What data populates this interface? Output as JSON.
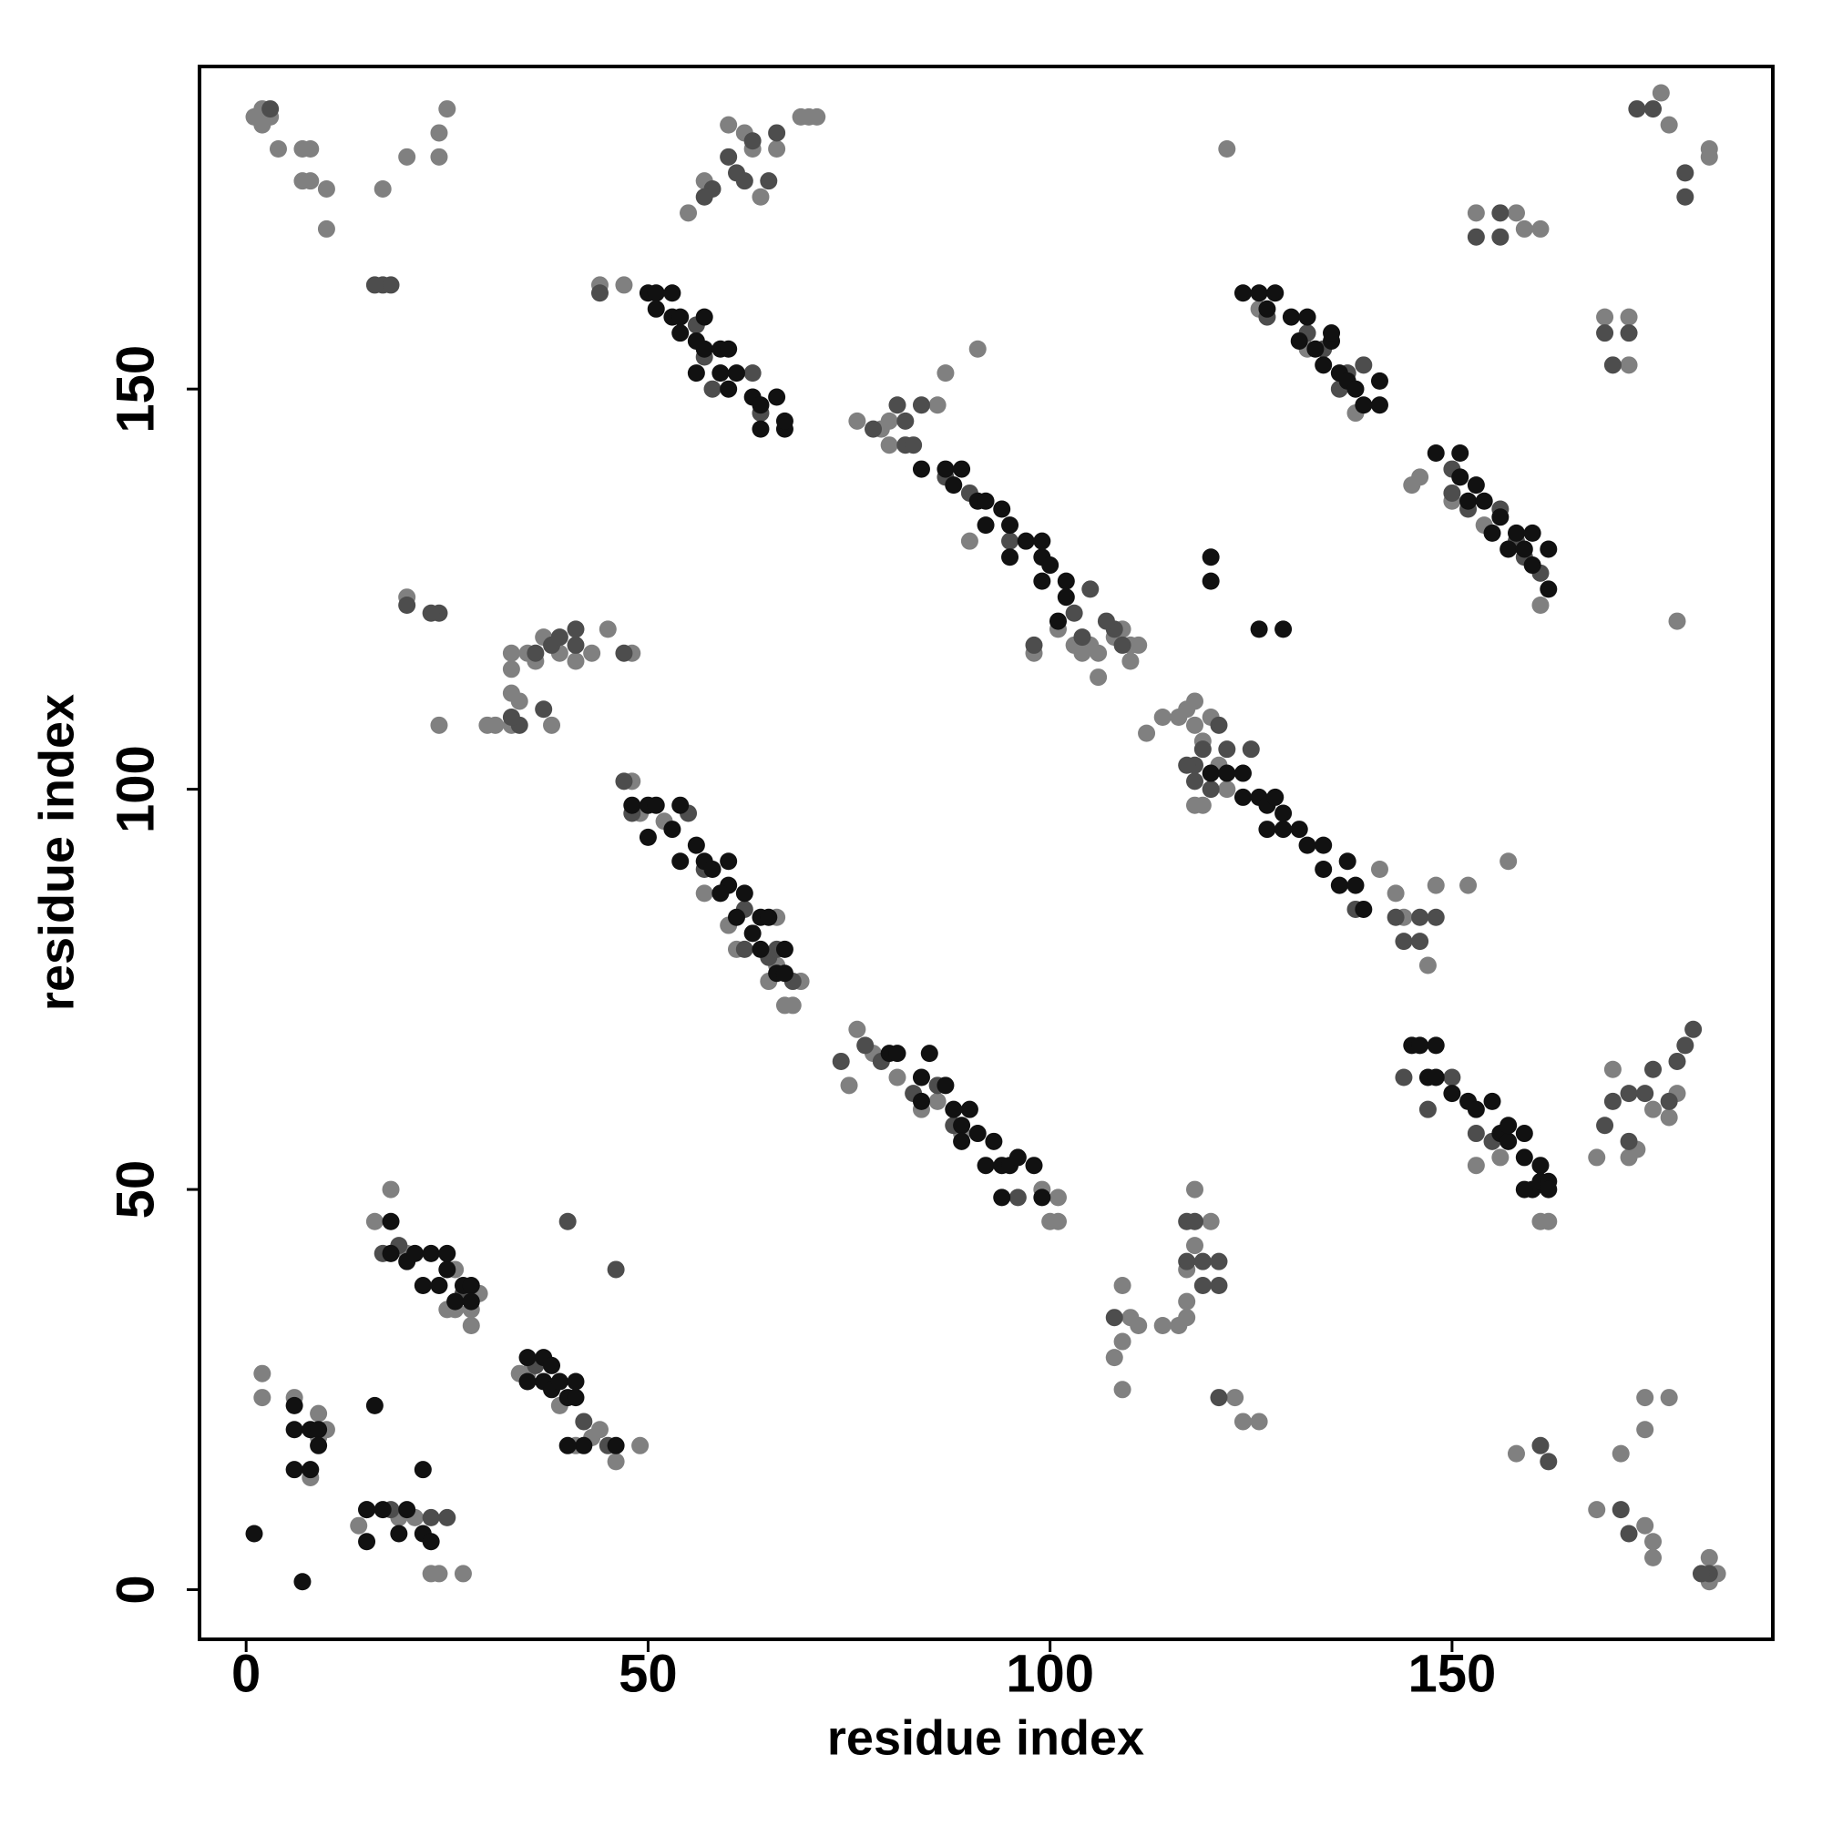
{
  "chart_data": {
    "type": "scatter",
    "x_label": "residue index",
    "y_label": "residue index",
    "xlim": [
      -5.8,
      189.9
    ],
    "ylim": [
      -6.2,
      190.3
    ],
    "xticks": [
      0,
      50,
      100,
      150
    ],
    "yticks": [
      0,
      50,
      100,
      150
    ],
    "grid": false,
    "series": [
      {
        "color": "#808080",
        "x": [
          1,
          2,
          3,
          4,
          7,
          8,
          7,
          10,
          10,
          17,
          20,
          24,
          24,
          55,
          57,
          60,
          62,
          63,
          64,
          66,
          69,
          70,
          71,
          44,
          20,
          24,
          30,
          31,
          33,
          33,
          33,
          33,
          34,
          35,
          36,
          37,
          39,
          41,
          43,
          45,
          48,
          38,
          47,
          76,
          80,
          79,
          86,
          87,
          91,
          80,
          90,
          98,
          101,
          103,
          104,
          105,
          106,
          106,
          108,
          109,
          110,
          110,
          111,
          112,
          114,
          117,
          118,
          118,
          119,
          120,
          121,
          116,
          118,
          119,
          122,
          141,
          143,
          144,
          147,
          148,
          152,
          157,
          153,
          156,
          162,
          161,
          168,
          170,
          175,
          177,
          178,
          173,
          169,
          172,
          172,
          161,
          178,
          159,
          161,
          153,
          158,
          177,
          176,
          182,
          182,
          122,
          145,
          146,
          150,
          154,
          132,
          138,
          126,
          109,
          108,
          109,
          110,
          111,
          114,
          116,
          117,
          117,
          117,
          118,
          118,
          120,
          109,
          123,
          124,
          126,
          100,
          101,
          101,
          99,
          76,
          75,
          78,
          81,
          67,
          68,
          65,
          69,
          66,
          48,
          49,
          57,
          60,
          61,
          52,
          84,
          86,
          89,
          2,
          2,
          6,
          9,
          8,
          9,
          10,
          14,
          15,
          19,
          21,
          23,
          24,
          27,
          26,
          25,
          28,
          29,
          16,
          18,
          34,
          39,
          41,
          43,
          46,
          49,
          168,
          171,
          174,
          174,
          177,
          175,
          175,
          182,
          183,
          182,
          174,
          158,
          66,
          172,
          35,
          25,
          8,
          2,
          20,
          26,
          28,
          44
        ],
        "values": [
          184,
          185,
          184,
          180,
          180,
          180,
          176,
          175,
          170,
          175,
          179,
          179,
          182,
          172,
          176,
          183,
          182,
          180,
          174,
          180,
          184,
          184,
          184,
          163,
          124,
          108,
          108,
          108,
          108,
          112,
          115,
          117,
          111,
          117,
          116,
          119,
          117,
          116,
          117,
          120,
          117,
          108,
          163,
          146,
          146,
          145,
          148,
          152,
          155,
          143,
          131,
          117,
          120,
          118,
          117,
          118,
          117,
          114,
          119,
          120,
          116,
          118,
          118,
          107,
          109,
          110,
          108,
          111,
          106,
          109,
          103,
          109,
          98,
          98,
          100,
          90,
          87,
          84,
          78,
          88,
          88,
          91,
          53,
          54,
          46,
          46,
          54,
          65,
          60,
          59,
          62,
          55,
          159,
          159,
          153,
          123,
          121,
          170,
          170,
          172,
          172,
          183,
          187,
          180,
          179,
          180,
          138,
          139,
          136,
          133,
          155,
          147,
          160,
          38,
          29,
          31,
          34,
          33,
          33,
          33,
          34,
          36,
          40,
          43,
          50,
          46,
          25,
          24,
          21,
          21,
          46,
          46,
          49,
          50,
          70,
          63,
          67,
          64,
          73,
          73,
          76,
          76,
          78,
          101,
          97,
          87,
          83,
          80,
          96,
          60,
          61,
          57,
          24,
          27,
          24,
          22,
          14,
          19,
          20,
          8,
          10,
          9,
          9,
          2,
          2,
          2,
          35,
          35,
          35,
          37,
          46,
          50,
          27,
          23,
          18,
          19,
          16,
          18,
          10,
          17,
          20,
          24,
          24,
          6,
          4,
          4,
          2,
          1,
          8,
          17,
          84,
          54,
          27,
          185,
          176,
          183,
          42,
          40,
          33,
          20
        ]
      },
      {
        "color": "#4d4d4d",
        "x": [
          61,
          62,
          63,
          65,
          66,
          60,
          58,
          57,
          3,
          17,
          18,
          16,
          20,
          24,
          37,
          34,
          33,
          38,
          39,
          41,
          41,
          36,
          98,
          104,
          108,
          109,
          103,
          121,
          119,
          118,
          120,
          122,
          125,
          118,
          117,
          146,
          144,
          148,
          146,
          138,
          143,
          170,
          169,
          172,
          174,
          175,
          177,
          178,
          179,
          180,
          172,
          161,
          162,
          182,
          181,
          171,
          172,
          173,
          175,
          179,
          179,
          153,
          156,
          156,
          169,
          172,
          170,
          117,
          119,
          121,
          119,
          121,
          108,
          117,
          118,
          121,
          47,
          40,
          46,
          45,
          44,
          78,
          82,
          81,
          82,
          84,
          83,
          87,
          90,
          95,
          107,
          105,
          25,
          27,
          17,
          19,
          42,
          36,
          23,
          18,
          74,
          77,
          79,
          83,
          86,
          88,
          96,
          47,
          48,
          55,
          57,
          62,
          65,
          66,
          68,
          62,
          134,
          137,
          136,
          139,
          132,
          127,
          150,
          150,
          156,
          152,
          158,
          159,
          161,
          144,
          150,
          153,
          155,
          147,
          58,
          64,
          63,
          57,
          56,
          23
        ],
        "values": [
          177,
          176,
          181,
          176,
          182,
          179,
          175,
          174,
          185,
          163,
          163,
          163,
          123,
          122,
          110,
          108,
          109,
          118,
          119,
          120,
          118,
          117,
          118,
          119,
          120,
          118,
          122,
          108,
          105,
          103,
          100,
          105,
          105,
          101,
          103,
          84,
          81,
          84,
          81,
          85,
          84,
          61,
          58,
          62,
          62,
          65,
          61,
          66,
          68,
          70,
          56,
          18,
          16,
          2,
          2,
          10,
          7,
          185,
          185,
          177,
          174,
          169,
          169,
          172,
          157,
          157,
          153,
          41,
          41,
          41,
          38,
          38,
          34,
          46,
          46,
          24,
          117,
          46,
          40,
          18,
          162,
          145,
          146,
          148,
          143,
          148,
          143,
          139,
          137,
          131,
          121,
          125,
          9,
          37,
          42,
          43,
          21,
          28,
          9,
          10,
          66,
          68,
          66,
          62,
          63,
          58,
          49,
          101,
          97,
          97,
          90,
          85,
          79,
          80,
          76,
          80,
          155,
          152,
          150,
          153,
          157,
          159,
          140,
          137,
          135,
          135,
          131,
          129,
          127,
          64,
          64,
          57,
          56,
          60,
          150,
          147,
          152,
          154,
          158,
          122
        ]
      },
      {
        "color": "#111111",
        "x": [
          50,
          51,
          53,
          51,
          53,
          54,
          57,
          54,
          56,
          57,
          59,
          60,
          56,
          59,
          61,
          60,
          63,
          64,
          66,
          64,
          67,
          67,
          84,
          87,
          88,
          89,
          91,
          92,
          94,
          92,
          95,
          97,
          95,
          99,
          99,
          100,
          99,
          102,
          102,
          101,
          124,
          126,
          128,
          127,
          130,
          132,
          131,
          133,
          135,
          134,
          136,
          137,
          138,
          139,
          141,
          141,
          135,
          148,
          151,
          151,
          153,
          152,
          154,
          156,
          155,
          158,
          157,
          159,
          160,
          162,
          162,
          160,
          48,
          50,
          51,
          54,
          53,
          56,
          57,
          58,
          60,
          60,
          59,
          62,
          61,
          64,
          63,
          65,
          64,
          67,
          66,
          67,
          50,
          54,
          80,
          81,
          84,
          85,
          84,
          87,
          88,
          89,
          90,
          89,
          91,
          93,
          92,
          94,
          95,
          96,
          94,
          99,
          98,
          120,
          122,
          124,
          124,
          126,
          127,
          128,
          129,
          127,
          129,
          131,
          132,
          134,
          134,
          136,
          138,
          139,
          137,
          145,
          146,
          148,
          147,
          148,
          150,
          152,
          153,
          155,
          156,
          157,
          157,
          159,
          159,
          161,
          160,
          161,
          162,
          162,
          159,
          120,
          120,
          126,
          129,
          22,
          24,
          25,
          26,
          27,
          28,
          28,
          23,
          25,
          18,
          18,
          20,
          21,
          35,
          37,
          38,
          35,
          37,
          38,
          39,
          41,
          40,
          41,
          6,
          6,
          8,
          9,
          9,
          8,
          6,
          16,
          15,
          17,
          20,
          19,
          15,
          22,
          22,
          7,
          1,
          46,
          42,
          40,
          23
        ],
        "values": [
          162,
          162,
          162,
          160,
          159,
          159,
          159,
          157,
          156,
          155,
          155,
          155,
          152,
          152,
          152,
          150,
          149,
          148,
          149,
          145,
          145,
          146,
          140,
          140,
          138,
          140,
          136,
          136,
          135,
          133,
          133,
          131,
          129,
          129,
          131,
          128,
          126,
          126,
          124,
          121,
          162,
          162,
          162,
          160,
          159,
          159,
          156,
          155,
          156,
          153,
          152,
          151,
          150,
          148,
          151,
          148,
          157,
          142,
          142,
          139,
          138,
          136,
          136,
          134,
          132,
          132,
          130,
          130,
          128,
          130,
          125,
          132,
          98,
          98,
          98,
          98,
          95,
          93,
          91,
          90,
          91,
          88,
          87,
          87,
          84,
          84,
          82,
          84,
          80,
          80,
          77,
          77,
          94,
          91,
          67,
          67,
          64,
          67,
          61,
          63,
          60,
          58,
          60,
          56,
          57,
          56,
          53,
          53,
          53,
          54,
          49,
          49,
          53,
          102,
          102,
          102,
          99,
          99,
          98,
          99,
          97,
          95,
          95,
          95,
          93,
          93,
          90,
          88,
          88,
          85,
          91,
          68,
          68,
          68,
          64,
          64,
          62,
          61,
          60,
          61,
          57,
          56,
          58,
          57,
          54,
          53,
          50,
          51,
          51,
          50,
          50,
          129,
          126,
          120,
          120,
          38,
          38,
          40,
          36,
          38,
          38,
          36,
          42,
          42,
          46,
          42,
          41,
          42,
          29,
          29,
          28,
          26,
          26,
          25,
          26,
          26,
          24,
          24,
          23,
          20,
          20,
          20,
          18,
          15,
          15,
          23,
          10,
          10,
          10,
          7,
          6,
          15,
          7,
          1,
          7,
          18,
          18,
          18,
          6
        ]
      }
    ]
  }
}
